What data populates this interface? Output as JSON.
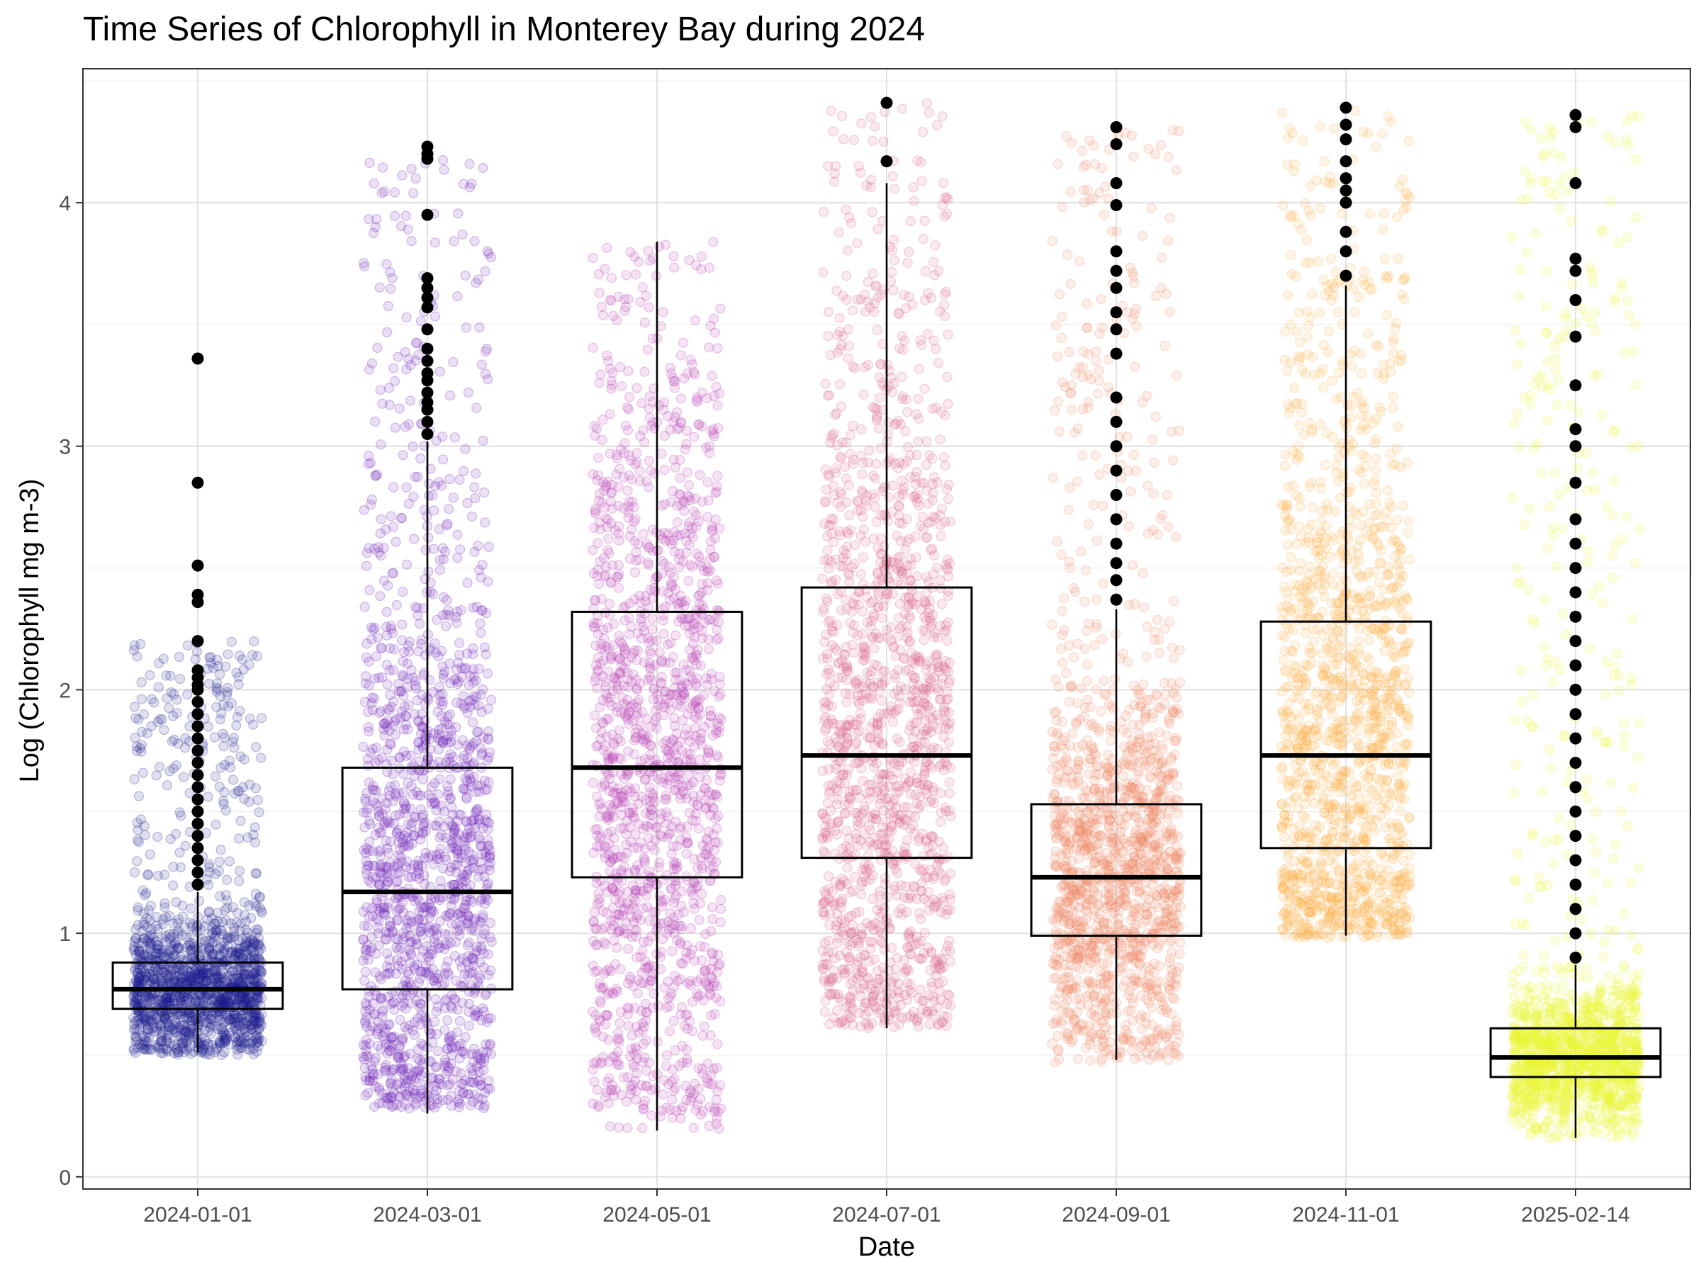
{
  "chart_data": {
    "type": "box",
    "title": "Time Series of Chlorophyll in Monterey Bay during 2024",
    "xlabel": "Date",
    "ylabel": "Log (Chlorophyll mg m-3)",
    "ylim": [
      -0.05,
      4.55
    ],
    "yticks": [
      0,
      1,
      2,
      3,
      4
    ],
    "grid": true,
    "legend": "none",
    "categories": [
      "2024-01-01",
      "2024-03-01",
      "2024-05-01",
      "2024-07-01",
      "2024-09-01",
      "2024-11-01",
      "2025-02-14"
    ],
    "colors": [
      "#0d0887",
      "#6a00a8",
      "#b12a90",
      "#e16462",
      "#f2844b",
      "#fca636",
      "#f0f921"
    ],
    "point_colors": [
      "#1a1a8c",
      "#6a1bb5",
      "#b53cb2",
      "#d9628a",
      "#ee8a63",
      "#fdb04a",
      "#ecf52a"
    ],
    "boxes": [
      {
        "category": "2024-01-01",
        "q1": 0.69,
        "median": 0.77,
        "q3": 0.88,
        "whisker_low": 0.51,
        "whisker_high": 1.17,
        "outliers": [
          1.2,
          1.25,
          1.3,
          1.35,
          1.4,
          1.45,
          1.5,
          1.55,
          1.6,
          1.65,
          1.7,
          1.75,
          1.8,
          1.85,
          1.9,
          1.95,
          2.0,
          2.02,
          2.05,
          2.08,
          2.2,
          2.36,
          2.39,
          2.51,
          2.85,
          3.36
        ],
        "jitter_min": 0.5,
        "jitter_max": 2.2,
        "jitter_spread": 0.56
      },
      {
        "category": "2024-03-01",
        "q1": 0.77,
        "median": 1.17,
        "q3": 1.68,
        "whisker_low": 0.26,
        "whisker_high": 3.02,
        "outliers": [
          3.05,
          3.1,
          3.15,
          3.18,
          3.22,
          3.27,
          3.3,
          3.35,
          3.4,
          3.48,
          3.57,
          3.61,
          3.65,
          3.69,
          3.95,
          4.18,
          4.2,
          4.23
        ],
        "jitter_min": 0.28,
        "jitter_max": 4.2,
        "jitter_spread": 0.56
      },
      {
        "category": "2024-05-01",
        "q1": 1.23,
        "median": 1.68,
        "q3": 2.32,
        "whisker_low": 0.19,
        "whisker_high": 3.84,
        "outliers": [],
        "jitter_min": 0.19,
        "jitter_max": 3.84,
        "jitter_spread": 0.56
      },
      {
        "category": "2024-07-01",
        "q1": 1.31,
        "median": 1.73,
        "q3": 2.42,
        "whisker_low": 0.61,
        "whisker_high": 4.08,
        "outliers": [
          4.17,
          4.41
        ],
        "jitter_min": 0.61,
        "jitter_max": 4.41,
        "jitter_spread": 0.56
      },
      {
        "category": "2024-09-01",
        "q1": 0.99,
        "median": 1.23,
        "q3": 1.53,
        "whisker_low": 0.48,
        "whisker_high": 2.33,
        "outliers": [
          2.37,
          2.45,
          2.52,
          2.6,
          2.7,
          2.8,
          2.9,
          3.0,
          3.1,
          3.2,
          3.38,
          3.48,
          3.55,
          3.65,
          3.72,
          3.8,
          3.99,
          4.08,
          4.24,
          4.31
        ],
        "jitter_min": 0.47,
        "jitter_max": 4.3,
        "jitter_spread": 0.56
      },
      {
        "category": "2024-11-01",
        "q1": 1.35,
        "median": 1.73,
        "q3": 2.28,
        "whisker_low": 0.99,
        "whisker_high": 3.66,
        "outliers": [
          3.7,
          3.8,
          3.88,
          4.0,
          4.05,
          4.1,
          4.17,
          4.26,
          4.32,
          4.39
        ],
        "jitter_min": 0.98,
        "jitter_max": 4.39,
        "jitter_spread": 0.56
      },
      {
        "category": "2025-02-14",
        "q1": 0.41,
        "median": 0.49,
        "q3": 0.61,
        "whisker_low": 0.16,
        "whisker_high": 0.87,
        "outliers": [
          0.9,
          1.0,
          1.1,
          1.2,
          1.3,
          1.4,
          1.5,
          1.6,
          1.7,
          1.8,
          1.9,
          2.0,
          2.1,
          2.2,
          2.3,
          2.4,
          2.5,
          2.6,
          2.7,
          2.85,
          3.0,
          3.07,
          3.25,
          3.45,
          3.6,
          3.72,
          3.77,
          4.08,
          4.31,
          4.36
        ],
        "jitter_min": 0.15,
        "jitter_max": 4.36,
        "jitter_spread": 0.56
      }
    ]
  }
}
